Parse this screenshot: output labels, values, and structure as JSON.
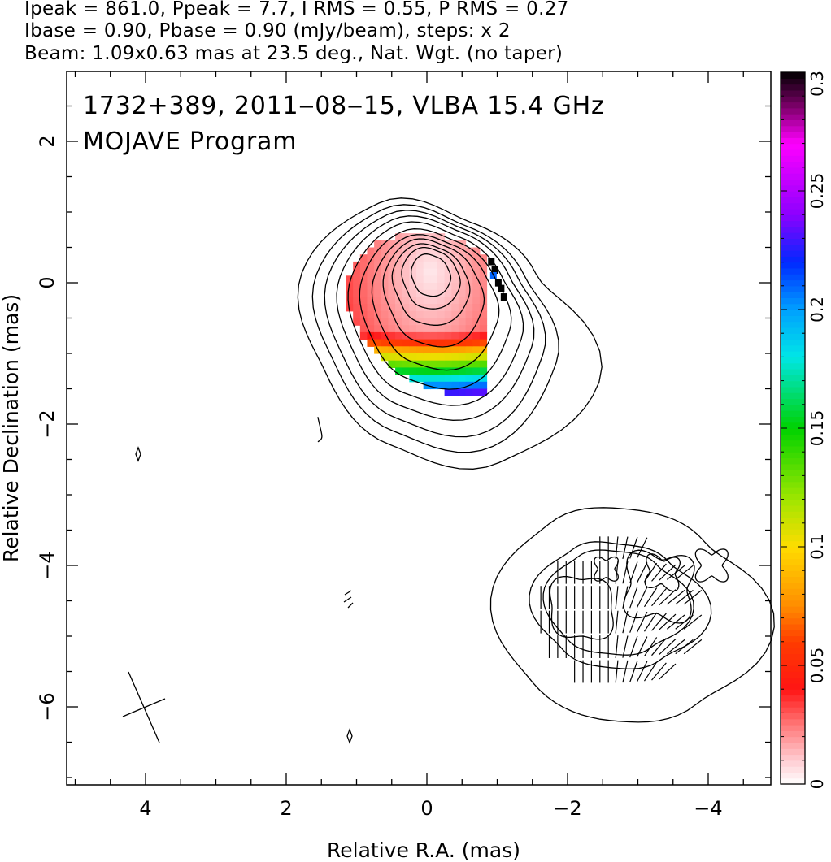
{
  "header": {
    "line1": "Ipeak = 861.0, Ppeak = 7.7, I RMS = 0.55, P RMS = 0.27",
    "line2": "Ibase = 0.90, Pbase = 0.90 (mJy/beam), steps: x 2",
    "line3": "Beam: 1.09x0.63 mas at 23.5 deg., Nat. Wgt. (no taper)"
  },
  "chart_data": {
    "type": "heatmap",
    "title_line1": "1732+389, 2011‒08‒15, VLBA 15.4 GHz",
    "title_line2": "MOJAVE Program",
    "xlabel": "Relative R.A. (mas)",
    "ylabel": "Relative Declination (mas)",
    "xlim": [
      5.1,
      -5.1
    ],
    "ylim": [
      -7.1,
      3.0
    ],
    "xticks": [
      4,
      2,
      0,
      -2,
      -4
    ],
    "yticks": [
      2,
      0,
      -2,
      -4,
      -6
    ],
    "xtick_labels": [
      "4",
      "2",
      "0",
      "−2",
      "−4"
    ],
    "ytick_labels": [
      "2",
      "0",
      "−2",
      "−4",
      "−6"
    ],
    "colorbar": {
      "range": [
        0,
        0.3
      ],
      "ticks": [
        0,
        0.05,
        0.1,
        0.15,
        0.2,
        0.25,
        0.3
      ],
      "tick_labels": [
        "0",
        "0.05",
        "0.1",
        "0.15",
        "0.2",
        "0.25",
        "0.3"
      ]
    },
    "core": {
      "x": -0.05,
      "y": 0.15
    },
    "knot": {
      "x": -2.75,
      "y": -4.65
    }
  }
}
